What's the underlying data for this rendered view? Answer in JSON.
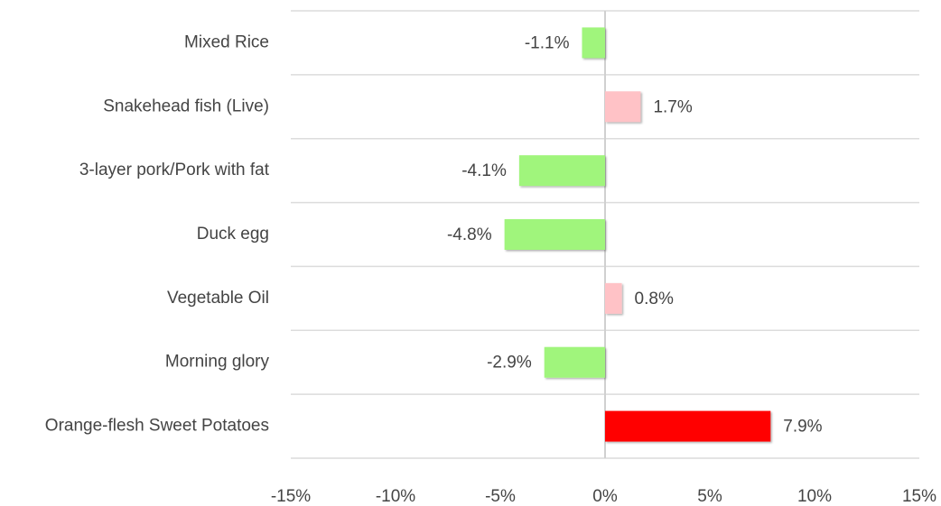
{
  "chart_data": {
    "type": "hbar",
    "categories": [
      "Mixed Rice",
      "Snakehead fish (Live)",
      "3-layer pork/Pork with fat",
      "Duck egg",
      "Vegetable Oil",
      "Morning glory",
      "Orange-flesh Sweet Potatoes"
    ],
    "values": [
      -1.1,
      1.7,
      -4.1,
      -4.8,
      0.8,
      -2.9,
      7.9
    ],
    "value_labels": [
      "-1.1%",
      "1.7%",
      "-4.1%",
      "-4.8%",
      "0.8%",
      "-2.9%",
      "7.9%"
    ],
    "colors": [
      "#a0f57c",
      "#ffc2c6",
      "#a0f57c",
      "#a0f57c",
      "#ffc2c6",
      "#a0f57c",
      "#ff0000"
    ],
    "xlim": [
      -15,
      15
    ],
    "xticks": [
      {
        "value": -15,
        "label": "-15%"
      },
      {
        "value": -10,
        "label": "-10%"
      },
      {
        "value": -5,
        "label": "-5%"
      },
      {
        "value": 0,
        "label": "0%"
      },
      {
        "value": 5,
        "label": "5%"
      },
      {
        "value": 10,
        "label": "10%"
      },
      {
        "value": 15,
        "label": "15%"
      }
    ]
  }
}
